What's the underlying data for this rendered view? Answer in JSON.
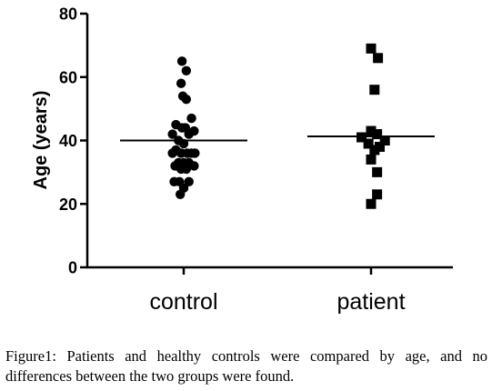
{
  "chart_data": {
    "type": "scatter",
    "ylabel": "Age (years)",
    "ylim": [
      0,
      80
    ],
    "yticks": [
      0,
      20,
      40,
      60,
      80
    ],
    "categories": [
      "control",
      "patient"
    ],
    "series": [
      {
        "category": "control",
        "marker": "circle",
        "mean": 40,
        "points": [
          {
            "offset": -0.2,
            "y": 65
          },
          {
            "offset": 0.3,
            "y": 62
          },
          {
            "offset": -0.3,
            "y": 58
          },
          {
            "offset": -0.1,
            "y": 54
          },
          {
            "offset": 0.3,
            "y": 53
          },
          {
            "offset": 0.9,
            "y": 47
          },
          {
            "offset": -0.9,
            "y": 45
          },
          {
            "offset": -0.2,
            "y": 44
          },
          {
            "offset": 0.2,
            "y": 44
          },
          {
            "offset": -1.3,
            "y": 42
          },
          {
            "offset": 0.6,
            "y": 42
          },
          {
            "offset": 1.2,
            "y": 43
          },
          {
            "offset": -0.6,
            "y": 40
          },
          {
            "offset": 0.0,
            "y": 39
          },
          {
            "offset": -0.9,
            "y": 37
          },
          {
            "offset": -0.3,
            "y": 36
          },
          {
            "offset": 0.4,
            "y": 36
          },
          {
            "offset": -1.3,
            "y": 36
          },
          {
            "offset": 0.9,
            "y": 36
          },
          {
            "offset": 1.3,
            "y": 36
          },
          {
            "offset": -0.6,
            "y": 33
          },
          {
            "offset": 0.0,
            "y": 33
          },
          {
            "offset": 0.6,
            "y": 33
          },
          {
            "offset": -1.0,
            "y": 32
          },
          {
            "offset": 1.2,
            "y": 32
          },
          {
            "offset": -0.3,
            "y": 31
          },
          {
            "offset": 0.3,
            "y": 31
          },
          {
            "offset": -1.1,
            "y": 27
          },
          {
            "offset": -0.5,
            "y": 27
          },
          {
            "offset": 0.6,
            "y": 27
          },
          {
            "offset": 0.0,
            "y": 25
          },
          {
            "offset": -0.4,
            "y": 23
          }
        ]
      },
      {
        "category": "patient",
        "marker": "square",
        "mean": 41.3,
        "points": [
          {
            "offset": 0.0,
            "y": 69
          },
          {
            "offset": 0.8,
            "y": 66
          },
          {
            "offset": 0.4,
            "y": 56
          },
          {
            "offset": 0.0,
            "y": 43
          },
          {
            "offset": 0.7,
            "y": 42
          },
          {
            "offset": -1.1,
            "y": 41
          },
          {
            "offset": 1.6,
            "y": 40
          },
          {
            "offset": -0.3,
            "y": 39
          },
          {
            "offset": 1.0,
            "y": 38
          },
          {
            "offset": 0.4,
            "y": 37
          },
          {
            "offset": 0.0,
            "y": 34
          },
          {
            "offset": 0.7,
            "y": 30
          },
          {
            "offset": 0.7,
            "y": 23
          },
          {
            "offset": 0.0,
            "y": 20
          }
        ]
      }
    ]
  },
  "caption": {
    "lead": "Figure1:",
    "text": " Patients and healthy controls were compared by age, and no differences between the two groups were found."
  }
}
